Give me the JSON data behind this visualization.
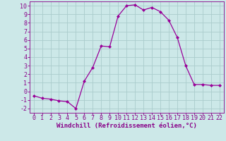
{
  "x": [
    0,
    1,
    2,
    3,
    4,
    5,
    6,
    7,
    8,
    9,
    10,
    11,
    12,
    13,
    14,
    15,
    16,
    17,
    18,
    19,
    20,
    21,
    22
  ],
  "y": [
    -0.5,
    -0.8,
    -0.9,
    -1.1,
    -1.2,
    -2.0,
    1.2,
    2.8,
    5.3,
    5.2,
    8.8,
    10.0,
    10.1,
    9.5,
    9.8,
    9.3,
    8.3,
    6.3,
    3.0,
    0.8,
    0.8,
    0.7,
    0.7
  ],
  "line_color": "#990099",
  "marker": "D",
  "marker_size": 2.0,
  "bg_color": "#cce8e8",
  "grid_color": "#aacccc",
  "xlabel": "Windchill (Refroidissement éolien,°C)",
  "xlim": [
    -0.5,
    22.5
  ],
  "ylim": [
    -2.5,
    10.5
  ],
  "xticks": [
    0,
    1,
    2,
    3,
    4,
    5,
    6,
    7,
    8,
    9,
    10,
    11,
    12,
    13,
    14,
    15,
    16,
    17,
    18,
    19,
    20,
    21,
    22
  ],
  "yticks": [
    -2,
    -1,
    0,
    1,
    2,
    3,
    4,
    5,
    6,
    7,
    8,
    9,
    10
  ],
  "tick_color": "#880088",
  "label_color": "#880088",
  "xlabel_fontsize": 6.5,
  "tick_fontsize": 6.0
}
